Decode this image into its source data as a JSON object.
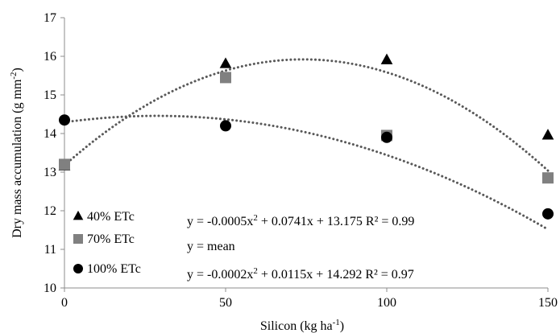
{
  "chart_data": {
    "type": "scatter",
    "xlabel": "Silicon (kg ha",
    "xlabel_sup": "-1",
    "xlabel_end": ")",
    "ylabel": "Dry mass accumulation (g mm",
    "ylabel_sup": "-2",
    "ylabel_end": ")",
    "x_ticks": [
      "0",
      "50",
      "100",
      "150"
    ],
    "y_ticks": [
      "10",
      "11",
      "12",
      "13",
      "14",
      "15",
      "16",
      "17"
    ],
    "xlim": [
      0,
      150
    ],
    "ylim": [
      10,
      17
    ],
    "grid": false,
    "x": [
      0,
      50,
      100,
      150
    ],
    "series": [
      {
        "name": "40% ETc",
        "marker": "triangle",
        "color": "#000000",
        "values": [
          13.15,
          15.8,
          15.9,
          13.95
        ],
        "trendline": {
          "a": -0.0005,
          "b": 0.0741,
          "c": 13.175
        }
      },
      {
        "name": "70% ETc",
        "marker": "square",
        "color": "#808080",
        "values": [
          13.2,
          15.45,
          13.95,
          12.85
        ]
      },
      {
        "name": "100% ETc",
        "marker": "circle",
        "color": "#000000",
        "values": [
          14.35,
          14.2,
          13.9,
          11.92
        ],
        "trendline": {
          "a": -0.0002,
          "b": 0.0115,
          "c": 14.292
        }
      }
    ],
    "trendline_color": "#595959",
    "equations": [
      {
        "text": "y = -0.0005x",
        "sup": "2",
        "rest": " + 0.0741x + 13.175  R² = 0.99"
      },
      {
        "text": "y = mean",
        "sup": "",
        "rest": ""
      },
      {
        "text": "y = -0.0002x",
        "sup": "2",
        "rest": " + 0.0115x + 14.292 R² = 0.97"
      }
    ],
    "legend_position": "bottom-left"
  }
}
